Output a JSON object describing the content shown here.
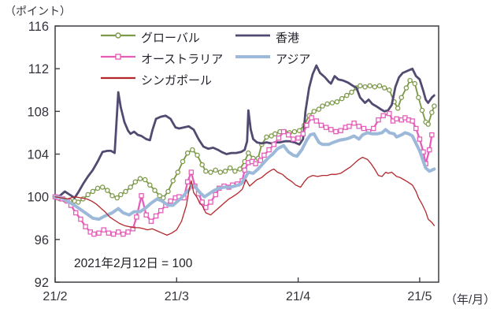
{
  "page": {
    "background": "#ffffff"
  },
  "chart_data": {
    "type": "line",
    "title": "",
    "annotation": "2021年2月12日 = 100",
    "grid": false,
    "legend_position": "top-inside-two-columns",
    "y_axis": {
      "unit_label": "（ポイント）",
      "min": 92,
      "max": 116,
      "tick_step": 4,
      "ticks": [
        116,
        112,
        108,
        104,
        100,
        96,
        92
      ]
    },
    "x_axis": {
      "unit_label": "（年/月）",
      "tick_labels": [
        "21/2",
        "21/3",
        "21/4",
        "21/5"
      ],
      "tick_positions_month": [
        2,
        3,
        4,
        5
      ],
      "x_start_month": 2,
      "x_end_month": 5.156
    },
    "series": [
      {
        "name": "グローバル",
        "color": "#7d9a4a",
        "marker": "circle",
        "line_width": 1.9,
        "x": [
          2.0,
          2.04,
          2.08,
          2.12,
          2.16,
          2.19,
          2.23,
          2.27,
          2.31,
          2.35,
          2.39,
          2.43,
          2.47,
          2.51,
          2.54,
          2.58,
          2.62,
          2.66,
          2.7,
          2.74,
          2.78,
          2.82,
          2.86,
          2.89,
          2.93,
          2.97,
          3.01,
          3.05,
          3.09,
          3.13,
          3.17,
          3.21,
          3.24,
          3.28,
          3.32,
          3.36,
          3.4,
          3.44,
          3.48,
          3.52,
          3.56,
          3.59,
          3.63,
          3.67,
          3.7,
          3.74,
          3.78,
          3.81,
          3.85,
          3.89,
          3.93,
          3.97,
          4.01,
          4.05,
          4.09,
          4.13,
          4.17,
          4.2,
          4.24,
          4.28,
          4.32,
          4.36,
          4.4,
          4.44,
          4.48,
          4.51,
          4.55,
          4.59,
          4.63,
          4.67,
          4.71,
          4.75,
          4.79,
          4.82,
          4.85,
          4.89,
          4.92,
          4.96,
          4.99,
          5.02,
          5.05,
          5.07,
          5.1,
          5.12
        ],
        "y": [
          100,
          99.8,
          99.7,
          99.6,
          99.6,
          99.5,
          99.8,
          100.2,
          100.5,
          100.8,
          100.9,
          100.6,
          100.1,
          99.9,
          100.2,
          100.5,
          100.9,
          101.4,
          101.7,
          101.6,
          101.1,
          100.6,
          100.1,
          99.9,
          100.5,
          101.5,
          102.3,
          103.3,
          104.1,
          104.4,
          103.9,
          103.0,
          102.4,
          102.3,
          102.5,
          102.3,
          102.4,
          102.7,
          102.4,
          102.6,
          103.3,
          104.1,
          103.6,
          103.6,
          104.9,
          105.6,
          105.7,
          105.9,
          106.1,
          106.1,
          106.0,
          106.1,
          106.2,
          106.7,
          107.6,
          108.0,
          108.2,
          108.5,
          108.7,
          108.8,
          108.9,
          109.2,
          109.5,
          109.8,
          110.2,
          110.4,
          110.3,
          110.4,
          110.3,
          110.4,
          110.2,
          110.0,
          108.9,
          108.3,
          109.3,
          110.2,
          110.9,
          110.6,
          109.3,
          108.1,
          107.0,
          106.8,
          107.9,
          108.5
        ]
      },
      {
        "name": "香港",
        "color": "#534a71",
        "marker": "none",
        "line_width": 2.8,
        "x": [
          2.0,
          2.04,
          2.08,
          2.12,
          2.16,
          2.19,
          2.23,
          2.27,
          2.31,
          2.35,
          2.39,
          2.43,
          2.46,
          2.49,
          2.52,
          2.54,
          2.57,
          2.6,
          2.62,
          2.65,
          2.68,
          2.71,
          2.75,
          2.78,
          2.8,
          2.83,
          2.87,
          2.91,
          2.95,
          2.99,
          3.02,
          3.06,
          3.1,
          3.14,
          3.18,
          3.22,
          3.26,
          3.3,
          3.34,
          3.37,
          3.41,
          3.45,
          3.49,
          3.53,
          3.56,
          3.58,
          3.59,
          3.61,
          3.63,
          3.66,
          3.7,
          3.74,
          3.78,
          3.81,
          3.85,
          3.89,
          3.93,
          3.97,
          4.01,
          4.04,
          4.06,
          4.09,
          4.12,
          4.15,
          4.18,
          4.22,
          4.25,
          4.27,
          4.3,
          4.33,
          4.37,
          4.41,
          4.45,
          4.48,
          4.51,
          4.55,
          4.58,
          4.61,
          4.64,
          4.68,
          4.71,
          4.74,
          4.77,
          4.8,
          4.83,
          4.86,
          4.9,
          4.94,
          4.97,
          5.0,
          5.03,
          5.05,
          5.07,
          5.1,
          5.12
        ],
        "y": [
          100,
          100.1,
          100.5,
          100.2,
          99.9,
          100.4,
          101.2,
          101.9,
          102.5,
          103.3,
          104.2,
          104.3,
          104.3,
          104.1,
          109.8,
          108.4,
          107.0,
          106.2,
          105.9,
          106.1,
          105.8,
          105.7,
          105.4,
          105.3,
          106.2,
          107.3,
          107.5,
          107.6,
          107.3,
          106.5,
          106.4,
          106.5,
          106.6,
          106.3,
          105.4,
          104.7,
          104.5,
          104.6,
          104.4,
          104.2,
          104.0,
          104.1,
          104.1,
          104.2,
          104.4,
          105.2,
          108.1,
          106.3,
          105.4,
          105.1,
          105.0,
          105.1,
          105.0,
          105.1,
          105.1,
          105.2,
          105.2,
          105.1,
          104.9,
          105.4,
          108.0,
          110.2,
          111.5,
          112.3,
          111.6,
          111.2,
          110.8,
          110.6,
          111.3,
          111.0,
          110.9,
          110.7,
          110.4,
          110.2,
          109.3,
          108.8,
          109.1,
          108.7,
          108.5,
          108.2,
          108.0,
          108.1,
          108.6,
          110.3,
          111.2,
          111.6,
          111.8,
          112.0,
          111.3,
          111.0,
          109.9,
          109.1,
          108.8,
          109.3,
          109.5
        ]
      },
      {
        "name": "オーストラリア",
        "color": "#e55fba",
        "marker": "square",
        "line_width": 2.3,
        "x": [
          2.0,
          2.03,
          2.06,
          2.1,
          2.13,
          2.17,
          2.21,
          2.25,
          2.29,
          2.32,
          2.36,
          2.4,
          2.44,
          2.48,
          2.52,
          2.56,
          2.6,
          2.64,
          2.67,
          2.71,
          2.75,
          2.79,
          2.83,
          2.87,
          2.91,
          2.95,
          2.99,
          3.02,
          3.06,
          3.09,
          3.12,
          3.15,
          3.18,
          3.21,
          3.24,
          3.28,
          3.32,
          3.35,
          3.39,
          3.43,
          3.46,
          3.5,
          3.54,
          3.56,
          3.59,
          3.62,
          3.65,
          3.69,
          3.72,
          3.76,
          3.8,
          3.84,
          3.88,
          3.92,
          3.96,
          4.0,
          4.04,
          4.07,
          4.11,
          4.15,
          4.19,
          4.23,
          4.27,
          4.31,
          4.35,
          4.39,
          4.42,
          4.46,
          4.5,
          4.54,
          4.58,
          4.62,
          4.66,
          4.7,
          4.75,
          4.78,
          4.81,
          4.85,
          4.88,
          4.91,
          4.94,
          4.97,
          5.0,
          5.03,
          5.05,
          5.08,
          5.1
        ],
        "y": [
          100,
          99.9,
          99.8,
          99.6,
          99.2,
          98.5,
          97.9,
          97.2,
          96.7,
          96.5,
          96.6,
          96.9,
          96.6,
          96.5,
          96.7,
          96.5,
          96.7,
          97.0,
          98.1,
          100.1,
          98.3,
          97.7,
          98.2,
          98.7,
          99.2,
          99.6,
          99.9,
          100.0,
          99.9,
          101.4,
          102.3,
          101.0,
          100.3,
          99.5,
          99.0,
          99.5,
          100.2,
          100.8,
          101.0,
          100.9,
          101.1,
          101.2,
          101.5,
          102.5,
          103.2,
          103.3,
          103.1,
          103.4,
          103.9,
          104.4,
          104.9,
          105.5,
          106.1,
          105.8,
          105.4,
          105.5,
          105.9,
          106.7,
          107.4,
          107.1,
          106.7,
          106.5,
          106.3,
          106.1,
          106.2,
          106.5,
          106.6,
          106.9,
          106.6,
          106.4,
          106.1,
          106.4,
          107.2,
          107.6,
          107.8,
          107.1,
          107.3,
          107.2,
          107.4,
          107.2,
          107.1,
          106.4,
          105.4,
          104.2,
          103.1,
          104.4,
          105.8
        ]
      },
      {
        "name": "アジア",
        "color": "#9cb9da",
        "marker": "none",
        "line_width": 4.0,
        "x": [
          2.0,
          2.05,
          2.1,
          2.16,
          2.21,
          2.26,
          2.31,
          2.36,
          2.41,
          2.47,
          2.52,
          2.56,
          2.61,
          2.65,
          2.7,
          2.75,
          2.79,
          2.84,
          2.88,
          2.93,
          2.97,
          3.0,
          3.04,
          3.08,
          3.12,
          3.15,
          3.19,
          3.23,
          3.27,
          3.31,
          3.35,
          3.39,
          3.44,
          3.48,
          3.53,
          3.56,
          3.59,
          3.63,
          3.67,
          3.71,
          3.75,
          3.79,
          3.83,
          3.88,
          3.92,
          3.96,
          3.99,
          4.03,
          4.07,
          4.1,
          4.13,
          4.17,
          4.2,
          4.25,
          4.29,
          4.34,
          4.39,
          4.42,
          4.46,
          4.5,
          4.53,
          4.57,
          4.61,
          4.65,
          4.69,
          4.72,
          4.75,
          4.79,
          4.81,
          4.85,
          4.88,
          4.91,
          4.94,
          4.97,
          5.0,
          5.03,
          5.05,
          5.08,
          5.1,
          5.12
        ],
        "y": [
          100,
          99.9,
          99.6,
          99.2,
          98.8,
          98.4,
          98.0,
          97.9,
          98.2,
          98.5,
          98.9,
          98.5,
          98.3,
          98.6,
          98.6,
          99.0,
          99.4,
          99.8,
          99.6,
          99.2,
          99.2,
          99.5,
          99.9,
          100.4,
          100.9,
          101.0,
          100.4,
          100.0,
          100.3,
          100.6,
          100.8,
          100.9,
          100.9,
          101.0,
          101.2,
          101.7,
          102.3,
          102.2,
          102.6,
          103.1,
          103.6,
          104.0,
          104.5,
          104.8,
          104.2,
          103.9,
          103.8,
          104.4,
          105.3,
          105.8,
          105.9,
          105.1,
          104.9,
          104.9,
          105.1,
          105.3,
          105.4,
          105.5,
          105.7,
          105.4,
          105.8,
          106.0,
          105.9,
          105.9,
          106.0,
          106.3,
          106.0,
          105.9,
          105.6,
          105.8,
          106.0,
          105.9,
          105.7,
          105.0,
          104.3,
          103.3,
          102.7,
          102.4,
          102.5,
          102.6
        ]
      },
      {
        "name": "シンガポール",
        "color": "#b2282c",
        "marker": "none",
        "line_width": 1.3,
        "x": [
          2.0,
          2.05,
          2.1,
          2.16,
          2.21,
          2.26,
          2.3,
          2.34,
          2.38,
          2.41,
          2.45,
          2.49,
          2.53,
          2.57,
          2.61,
          2.65,
          2.69,
          2.73,
          2.76,
          2.8,
          2.84,
          2.88,
          2.92,
          2.96,
          3.0,
          3.04,
          3.08,
          3.1,
          3.12,
          3.14,
          3.17,
          3.19,
          3.21,
          3.24,
          3.28,
          3.31,
          3.35,
          3.39,
          3.43,
          3.46,
          3.5,
          3.54,
          3.57,
          3.6,
          3.63,
          3.66,
          3.7,
          3.74,
          3.78,
          3.8,
          3.83,
          3.87,
          3.91,
          3.95,
          3.98,
          4.02,
          4.05,
          4.08,
          4.12,
          4.16,
          4.2,
          4.24,
          4.27,
          4.31,
          4.35,
          4.39,
          4.43,
          4.47,
          4.5,
          4.53,
          4.57,
          4.6,
          4.63,
          4.66,
          4.69,
          4.72,
          4.74,
          4.77,
          4.81,
          4.84,
          4.87,
          4.9,
          4.94,
          4.97,
          4.99,
          5.02,
          5.05,
          5.07,
          5.1,
          5.12
        ],
        "y": [
          100,
          99.9,
          99.8,
          100.0,
          99.9,
          99.8,
          99.6,
          99.3,
          98.9,
          98.6,
          98.1,
          97.8,
          97.5,
          97.3,
          97.2,
          97.1,
          97.1,
          97.0,
          96.9,
          97.0,
          96.8,
          96.6,
          96.4,
          96.6,
          96.9,
          97.7,
          99.2,
          100.5,
          101.5,
          100.4,
          99.9,
          99.4,
          99.2,
          98.5,
          98.3,
          98.6,
          99.0,
          99.4,
          99.8,
          100.0,
          100.3,
          100.7,
          101.6,
          101.0,
          101.3,
          101.6,
          101.8,
          102.2,
          102.5,
          102.6,
          102.3,
          102.1,
          101.7,
          101.4,
          101.1,
          100.9,
          101.4,
          101.8,
          102.0,
          101.9,
          102.0,
          102.0,
          102.1,
          102.1,
          102.2,
          102.5,
          102.8,
          103.2,
          103.5,
          103.7,
          103.5,
          103.1,
          102.6,
          102.0,
          101.9,
          102.3,
          102.2,
          102.3,
          101.9,
          101.8,
          101.6,
          101.4,
          101.1,
          100.5,
          99.9,
          99.3,
          98.6,
          97.9,
          97.6,
          97.3
        ]
      }
    ]
  }
}
